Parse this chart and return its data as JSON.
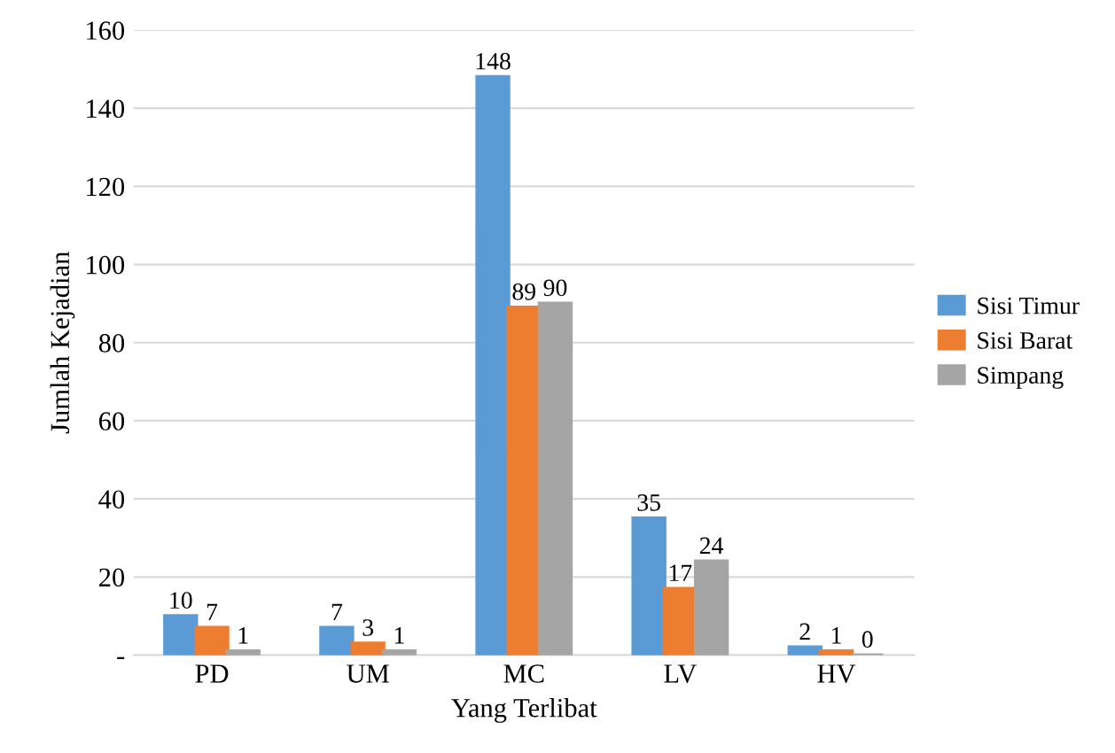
{
  "chart_data": {
    "type": "bar",
    "xlabel": "Yang Terlibat",
    "ylabel": "Jumlah Kejadian",
    "categories": [
      "PD",
      "UM",
      "MC",
      "LV",
      "HV"
    ],
    "series": [
      {
        "name": "Sisi Timur",
        "color": "#5b9bd5",
        "values": [
          10,
          7,
          148,
          35,
          2
        ]
      },
      {
        "name": "Sisi Barat",
        "color": "#ed7d31",
        "values": [
          7,
          3,
          89,
          17,
          1
        ]
      },
      {
        "name": "Simpang",
        "color": "#a5a5a5",
        "values": [
          1,
          1,
          90,
          24,
          0
        ]
      }
    ],
    "ylim": [
      0,
      160
    ],
    "yticks": [
      {
        "value": 0,
        "label": "-"
      },
      20,
      40,
      60,
      80,
      100,
      120,
      140,
      160
    ],
    "grid": "y",
    "legend": "right",
    "data_labels": true
  }
}
